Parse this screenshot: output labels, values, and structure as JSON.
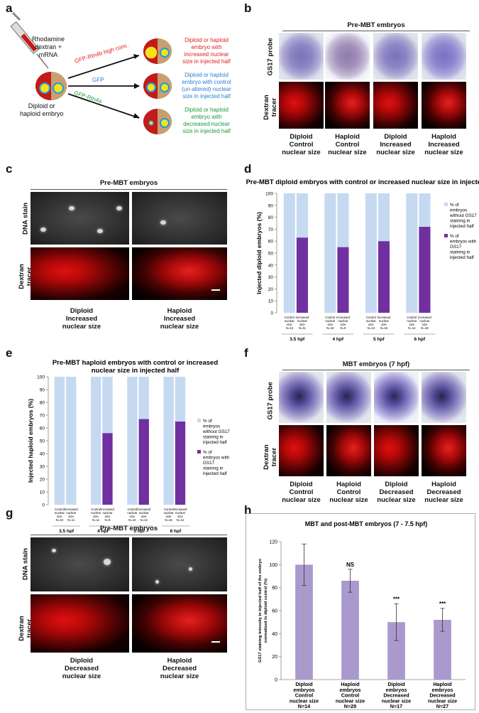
{
  "panels": {
    "a": "a",
    "b": "b",
    "c": "c",
    "d": "d",
    "e": "e",
    "f": "f",
    "g": "g",
    "h": "h"
  },
  "panel_a": {
    "injection_label": "Rhodamine\ndextran +\nmRNA",
    "embryo_label": "Diploid or\nhaploid embryo",
    "arrows": [
      {
        "label": "GFP-Rtn4b high conc.",
        "color": "#e02020",
        "result": "Diploid or haploid\nembryo with\nincreased nuclear\nsize in injected half"
      },
      {
        "label": "GFP",
        "color": "#2a7fd4",
        "result": "Diploid or haploid\nembryo with control\n(un-altered) nuclear\nsize in injected half"
      },
      {
        "label": "GFP-Rtn4a",
        "color": "#1a9a3a",
        "result": "Diploid or haploid\nembryo with\ndecreased nuclear\nsize in injected half"
      }
    ]
  },
  "panel_b": {
    "title": "Pre-MBT embryos",
    "row_labels": [
      "GS17 probe",
      "Dextran\ntracer"
    ],
    "columns": [
      "Diploid\nControl\nnuclear size",
      "Haploid\nControl\nnuclear size",
      "Diploid\nIncreased\nnuclear size",
      "Haploid\nIncreased\nnuclear size"
    ]
  },
  "panel_c": {
    "title": "Pre-MBT embryos",
    "row_labels": [
      "DNA stain",
      "Dextran\ntracer"
    ],
    "columns": [
      "Diploid\nIncreased\nnuclear size",
      "Haploid\nIncreased\nnuclear size"
    ]
  },
  "panel_f": {
    "title": "MBT embryos (7 hpf)",
    "row_labels": [
      "GS17 probe",
      "Dextran\ntracer"
    ],
    "columns": [
      "Diploid\nControl\nnuclear size",
      "Haploid\nControl\nnuclear size",
      "Diploid\nDecreased\nnuclear size",
      "Haploid\nDecreased\nnuclear size"
    ]
  },
  "panel_g": {
    "title": "Pre-MBT embryos",
    "row_labels": [
      "DNA stain",
      "Dextran\ntracer"
    ],
    "columns": [
      "Diploid\nDecreased\nnuclear size",
      "Haploid\nDecreased\nnuclear size"
    ]
  },
  "chart_data": [
    {
      "panel": "d",
      "type": "bar",
      "stacked": true,
      "title": "Pre-MBT diploid embryos with control or increased nuclear size in injected half",
      "ylabel": "Injected diploid embryos (%)",
      "ylim": [
        0,
        100
      ],
      "yticks": [
        0,
        10,
        20,
        30,
        40,
        50,
        60,
        70,
        80,
        90,
        100
      ],
      "groups": [
        "3.5 hpf",
        "4 hpf",
        "5 hpf",
        "6 hpf"
      ],
      "bar_labels": [
        "Control\nnuclear\nsize\nN=13",
        "Increased\nnuclear\nsize\nN=11",
        "Control\nnuclear\nsize\nN=16",
        "Increased\nnuclear\nsize\nN=9",
        "Control\nnuclear\nsize\nN=13",
        "Increased\nnuclear\nsize\nN=15",
        "Control\nnuclear\nsize\nN=14",
        "Increased\nnuclear\nsize\nN=18"
      ],
      "series": [
        {
          "name": "% of embryos with GS17 staining in injected half",
          "color": "#7030a0",
          "values": [
            0,
            63,
            0,
            55,
            0,
            60,
            0,
            72
          ]
        },
        {
          "name": "% of embryos without GS17 staining in injected half",
          "color": "#c5d9f1",
          "values": [
            100,
            37,
            100,
            45,
            100,
            40,
            100,
            28
          ]
        }
      ],
      "legend": "right"
    },
    {
      "panel": "e",
      "type": "bar",
      "stacked": true,
      "title": "Pre-MBT haploid embryos with control or increased nuclear size in injected half",
      "ylabel": "Injected haploid embryos (%)",
      "ylim": [
        0,
        100
      ],
      "yticks": [
        0,
        10,
        20,
        30,
        40,
        50,
        60,
        70,
        80,
        90,
        100
      ],
      "groups": [
        "3.5 hpf",
        "4 hpf",
        "5 hpf",
        "6 hpf"
      ],
      "bar_labels": [
        "Control\nnuclear\nsize\nN=10",
        "Increased\nnuclear\nsize\nN=11",
        "Control\nnuclear\nsize\nN=11",
        "Increased\nnuclear\nsize\nN=9",
        "Control\nnuclear\nsize\nN=10",
        "Increased\nnuclear\nsize\nN=12",
        "Control\nnuclear\nsize\nN=15",
        "Increased\nnuclear\nsize\nN=14"
      ],
      "series": [
        {
          "name": "% of embryos with GS17 staining in injected half",
          "color": "#7030a0",
          "values": [
            0,
            0,
            0,
            56,
            0,
            67,
            0,
            65
          ]
        },
        {
          "name": "% of embryos without GS17 staining in injected half",
          "color": "#c5d9f1",
          "values": [
            100,
            100,
            100,
            44,
            100,
            33,
            100,
            35
          ]
        }
      ],
      "legend": "right"
    },
    {
      "panel": "h",
      "type": "bar",
      "title": "MBT and post-MBT embryos (7 - 7.5 hpf)",
      "ylabel": "GS17 staining intensity in injected half of the embryo normalized to diploid control (%)",
      "ylim": [
        0,
        120
      ],
      "yticks": [
        0,
        20,
        40,
        60,
        80,
        100,
        120
      ],
      "categories": [
        "Diploid\nembryos\nControl\nnuclear size\nN=14",
        "Haploid\nembryos\nControl\nnuclear size\nN=29",
        "Diploid\nembryos\nDecreased\nnuclear size\nN=17",
        "Haploid\nembryos\nDecreased\nnuclear size\nN=27"
      ],
      "values": [
        100,
        86,
        50,
        52
      ],
      "errors": [
        18,
        10,
        16,
        10
      ],
      "annotations": [
        "",
        "NS",
        "***",
        "***"
      ],
      "color": "#a999cc"
    }
  ]
}
